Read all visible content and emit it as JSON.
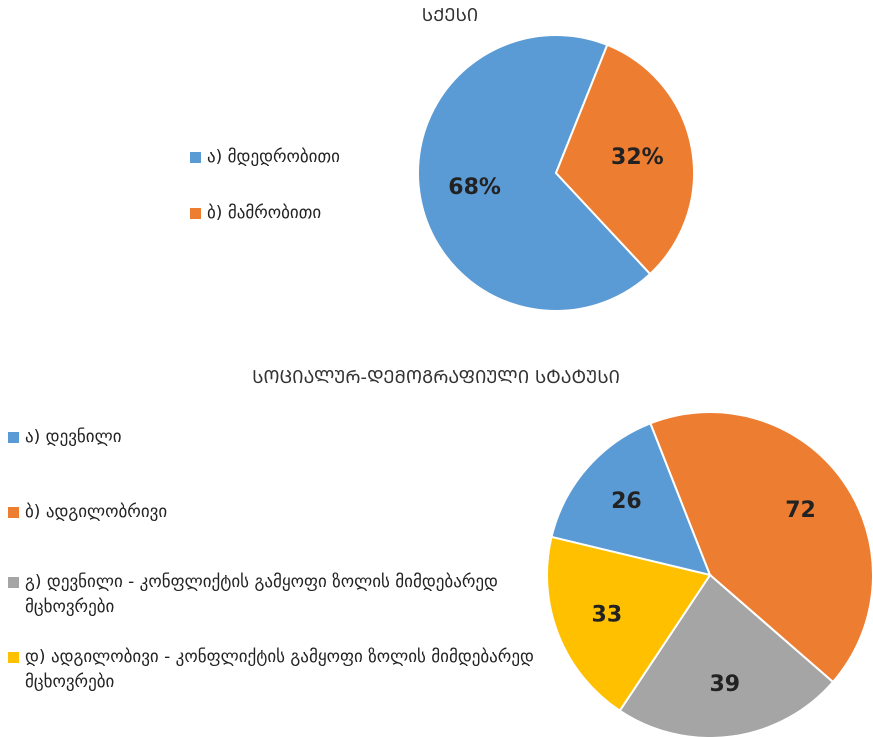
{
  "chart_data": [
    {
      "type": "pie",
      "title": "ᲡᲥᲔᲡᲘ",
      "categories": [
        "ა) მდედრობითი",
        "ბ) მამრობითი"
      ],
      "values": [
        68,
        32
      ],
      "value_labels": [
        "68%",
        "32%"
      ],
      "colors": [
        "#5b9bd5",
        "#ed7d31"
      ]
    },
    {
      "type": "pie",
      "title": "ᲡᲝᲪᲘᲐᲚᲣᲠ-ᲓᲔᲛᲝᲒᲠᲐᲤᲘᲣᲚᲘ ᲡᲢᲐᲢᲣᲡᲘ",
      "categories": [
        "ა) დევნილი",
        "ბ) ადგილობრივი",
        "გ) დევნილი - კონფლიქტის გამყოფი ზოლის მიმდებარედ მცხოვრები",
        "დ) ადგილობივი - კონფლიქტის გამყოფი ზოლის მიმდებარედ მცხოვრები"
      ],
      "values": [
        26,
        72,
        39,
        33
      ],
      "colors": [
        "#5b9bd5",
        "#ed7d31",
        "#a5a5a5",
        "#ffc000"
      ]
    }
  ]
}
